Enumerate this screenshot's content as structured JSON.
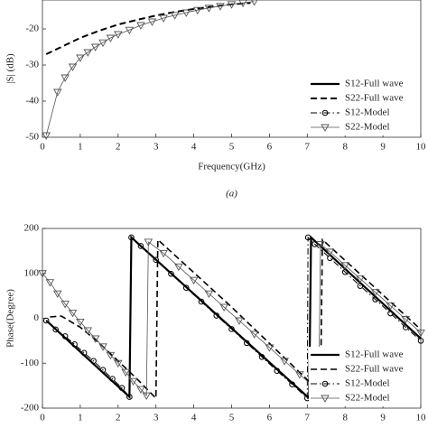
{
  "chart_data": [
    {
      "type": "line",
      "ylabel": "|S| (dB)",
      "xlabel": "Frequency(GHz)",
      "caption": "(a)",
      "xlim": [
        0,
        10
      ],
      "xticks": [
        0,
        1,
        2,
        3,
        4,
        5,
        6,
        7,
        8,
        9,
        10
      ],
      "ylim": [
        -50,
        -12
      ],
      "yticks": [
        -20,
        -30,
        -40,
        -50
      ],
      "legend": "lower right",
      "series": [
        {
          "name": "S12-Full wave",
          "color": "#000000",
          "style": "solid",
          "width": 2.2,
          "marker": null,
          "x": [],
          "values": []
        },
        {
          "name": "S22-Full wave",
          "color": "#000000",
          "style": "dashed",
          "width": 2,
          "marker": null,
          "x": [
            0.1,
            0.5,
            1,
            1.5,
            2,
            2.5,
            3,
            3.5,
            4,
            4.5,
            5,
            5.5
          ],
          "values": [
            -27,
            -25,
            -22.5,
            -20.5,
            -18.8,
            -17.5,
            -16.3,
            -15.3,
            -14.5,
            -13.8,
            -13.2,
            -12.8
          ]
        },
        {
          "name": "S12-Model",
          "color": "#000000",
          "style": "dashdot",
          "width": 1,
          "marker": "circle",
          "x": [],
          "values": []
        },
        {
          "name": "S22-Model",
          "color": "#555555",
          "style": "solid",
          "width": 0.8,
          "marker": "triangle",
          "x": [
            0.1,
            0.4,
            0.6,
            0.8,
            1,
            1.2,
            1.4,
            1.6,
            1.8,
            2,
            2.3,
            2.6,
            2.9,
            3.2,
            3.5,
            3.8,
            4.1,
            4.4,
            4.7,
            5,
            5.3,
            5.6
          ],
          "values": [
            -49.5,
            -37.5,
            -33.5,
            -30.5,
            -28,
            -26.5,
            -25,
            -23.8,
            -22.5,
            -21.5,
            -20.3,
            -19,
            -18,
            -17,
            -16.2,
            -15.5,
            -14.8,
            -14.2,
            -13.7,
            -13.2,
            -12.8,
            -12.4
          ]
        }
      ]
    },
    {
      "type": "line",
      "ylabel": "Phase(Degree)",
      "xlim": [
        0,
        10
      ],
      "xticks": [
        0,
        1,
        2,
        3,
        4,
        5,
        6,
        7,
        8,
        9,
        10
      ],
      "ylim": [
        -200,
        200
      ],
      "yticks": [
        200,
        100,
        0,
        -100,
        -200
      ],
      "legend": "lower right",
      "series": [
        {
          "name": "S12-Full wave",
          "color": "#000000",
          "style": "solid",
          "width": 2.2,
          "marker": null,
          "x": [
            0.1,
            2.3,
            2.35,
            7.05,
            7.1,
            10
          ],
          "values": [
            -5,
            -175,
            180,
            -178,
            180,
            -45
          ]
        },
        {
          "name": "S22-Full wave",
          "color": "#000000",
          "style": "dashed",
          "width": 1.6,
          "marker": null,
          "x": [
            0.2,
            0.5,
            1,
            1.5,
            2,
            2.5,
            3,
            3.05,
            5,
            7.35,
            7.4,
            10
          ],
          "values": [
            3,
            5,
            -20,
            -55,
            -95,
            -135,
            -178,
            175,
            25,
            -165,
            175,
            -25
          ]
        },
        {
          "name": "S12-Model",
          "color": "#000000",
          "style": "dashdot",
          "width": 1,
          "marker": "circle",
          "x": [
            0.1,
            0.35,
            0.6,
            0.85,
            1.1,
            1.35,
            1.6,
            1.85,
            2.1,
            2.3,
            2.35,
            2.6,
            3,
            3.4,
            3.8,
            4.2,
            4.6,
            5,
            5.4,
            5.8,
            6.2,
            6.6,
            7,
            7.02,
            7.2,
            7.6,
            8,
            8.4,
            8.8,
            9.2,
            9.6,
            10
          ],
          "values": [
            -5,
            -25,
            -40,
            -58,
            -77,
            -95,
            -115,
            -135,
            -155,
            -175,
            180,
            161,
            130,
            99,
            68,
            37,
            6,
            -24,
            -55,
            -86,
            -117,
            -147,
            -178,
            180,
            165,
            134,
            103,
            72,
            42,
            11,
            -20,
            -50
          ]
        },
        {
          "name": "S22-Model",
          "color": "#555555",
          "style": "solid",
          "width": 0.8,
          "marker": "triangle",
          "x": [
            0,
            0.2,
            0.4,
            0.6,
            0.8,
            1,
            1.2,
            1.4,
            1.6,
            1.8,
            2,
            2.2,
            2.4,
            2.6,
            2.75,
            2.8,
            3.2,
            3.6,
            4,
            4.4,
            4.8,
            5.2,
            5.6,
            6,
            6.4,
            6.8,
            7.2,
            7.3,
            7.35,
            7.6,
            8,
            8.4,
            8.8,
            9.2,
            9.6,
            10
          ],
          "values": [
            100,
            80,
            55,
            32,
            12,
            -8,
            -27,
            -45,
            -63,
            -82,
            -100,
            -120,
            -140,
            -158,
            -172,
            170,
            145,
            115,
            85,
            55,
            25,
            -5,
            -35,
            -65,
            -95,
            -125,
            -155,
            -165,
            165,
            148,
            118,
            88,
            58,
            28,
            -2,
            -32
          ]
        }
      ]
    }
  ]
}
